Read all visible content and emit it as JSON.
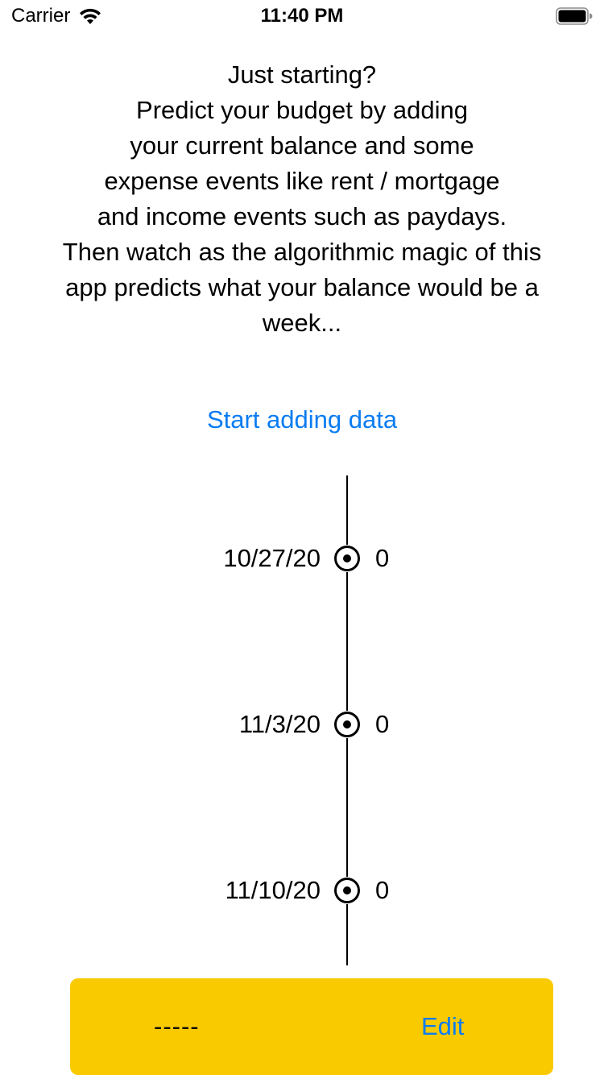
{
  "status_bar": {
    "carrier": "Carrier",
    "time": "11:40 PM",
    "icons": [
      "wifi-icon",
      "battery-icon"
    ]
  },
  "intro": {
    "lines": [
      "Just starting?",
      "Predict your budget by adding",
      "your current balance and some",
      "expense events like rent / mortgage",
      "and income events such as paydays.",
      "Then watch as the algorithmic magic of this",
      "app predicts what your balance would be a",
      "week..."
    ]
  },
  "start_link": {
    "label": "Start adding data"
  },
  "timeline": {
    "entries": [
      {
        "date": "10/27/20",
        "value": "0"
      },
      {
        "date": "11/3/20",
        "value": "0"
      },
      {
        "date": "11/10/20",
        "value": "0"
      }
    ]
  },
  "bottom_bar": {
    "balance": "-----",
    "edit_label": "Edit"
  },
  "colors": {
    "accent": "#0a7cf2",
    "bottom_bar": "#f9ca00",
    "text": "#000000",
    "background": "#ffffff"
  }
}
